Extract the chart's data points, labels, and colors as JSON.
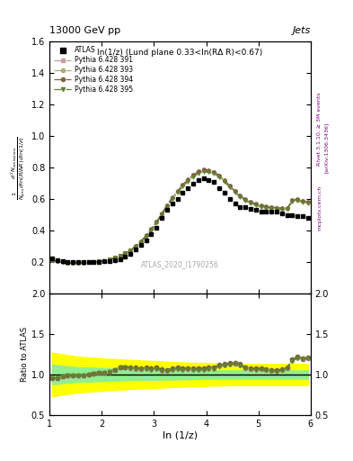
{
  "title_top": "13000 GeV pp",
  "title_right": "Jets",
  "plot_title": "ln(1/z) (Lund plane 0.33<ln(RΔ R)<0.67)",
  "watermark": "ATLAS_2020_I1790256",
  "rivet_label": "Rivet 3.1.10, ≥ 3M events",
  "arxiv_label": "[arXiv:1306.3436]",
  "mcplots_label": "mcplots.cern.ch",
  "xlabel": "ln (1/z)",
  "ylabel_ratio": "Ratio to ATLAS",
  "xlim": [
    1.0,
    6.0
  ],
  "ylim_main": [
    0.0,
    1.6
  ],
  "ylim_ratio": [
    0.5,
    2.0
  ],
  "yticks_main": [
    0.2,
    0.4,
    0.6,
    0.8,
    1.0,
    1.2,
    1.4,
    1.6
  ],
  "yticks_ratio": [
    0.5,
    1.0,
    1.5,
    2.0
  ],
  "x_atlas": [
    1.05,
    1.15,
    1.25,
    1.35,
    1.45,
    1.55,
    1.65,
    1.75,
    1.85,
    1.95,
    2.05,
    2.15,
    2.25,
    2.35,
    2.45,
    2.55,
    2.65,
    2.75,
    2.85,
    2.95,
    3.05,
    3.15,
    3.25,
    3.35,
    3.45,
    3.55,
    3.65,
    3.75,
    3.85,
    3.95,
    4.05,
    4.15,
    4.25,
    4.35,
    4.45,
    4.55,
    4.65,
    4.75,
    4.85,
    4.95,
    5.05,
    5.15,
    5.25,
    5.35,
    5.45,
    5.55,
    5.65,
    5.75,
    5.85,
    5.95
  ],
  "y_atlas": [
    0.225,
    0.215,
    0.205,
    0.2,
    0.2,
    0.2,
    0.2,
    0.2,
    0.2,
    0.2,
    0.205,
    0.21,
    0.215,
    0.22,
    0.235,
    0.255,
    0.28,
    0.31,
    0.34,
    0.38,
    0.42,
    0.48,
    0.53,
    0.57,
    0.6,
    0.64,
    0.67,
    0.7,
    0.72,
    0.73,
    0.72,
    0.71,
    0.67,
    0.64,
    0.6,
    0.57,
    0.55,
    0.55,
    0.54,
    0.53,
    0.52,
    0.52,
    0.52,
    0.52,
    0.51,
    0.5,
    0.5,
    0.49,
    0.49,
    0.48
  ],
  "x_mc": [
    1.05,
    1.15,
    1.25,
    1.35,
    1.45,
    1.55,
    1.65,
    1.75,
    1.85,
    1.95,
    2.05,
    2.15,
    2.25,
    2.35,
    2.45,
    2.55,
    2.65,
    2.75,
    2.85,
    2.95,
    3.05,
    3.15,
    3.25,
    3.35,
    3.45,
    3.55,
    3.65,
    3.75,
    3.85,
    3.95,
    4.05,
    4.15,
    4.25,
    4.35,
    4.45,
    4.55,
    4.65,
    4.75,
    4.85,
    4.95,
    5.05,
    5.15,
    5.25,
    5.35,
    5.45,
    5.55,
    5.65,
    5.75,
    5.85,
    5.95
  ],
  "y_391": [
    0.215,
    0.205,
    0.2,
    0.198,
    0.197,
    0.197,
    0.198,
    0.2,
    0.202,
    0.205,
    0.21,
    0.218,
    0.228,
    0.24,
    0.256,
    0.276,
    0.3,
    0.33,
    0.365,
    0.405,
    0.452,
    0.503,
    0.555,
    0.605,
    0.645,
    0.685,
    0.718,
    0.748,
    0.77,
    0.782,
    0.778,
    0.768,
    0.745,
    0.715,
    0.68,
    0.648,
    0.618,
    0.595,
    0.578,
    0.565,
    0.555,
    0.548,
    0.545,
    0.542,
    0.54,
    0.538,
    0.59,
    0.595,
    0.585,
    0.578
  ],
  "y_393": [
    0.215,
    0.205,
    0.2,
    0.198,
    0.197,
    0.197,
    0.198,
    0.2,
    0.202,
    0.205,
    0.21,
    0.218,
    0.228,
    0.24,
    0.256,
    0.277,
    0.302,
    0.332,
    0.368,
    0.408,
    0.455,
    0.507,
    0.558,
    0.608,
    0.648,
    0.688,
    0.72,
    0.75,
    0.772,
    0.784,
    0.78,
    0.77,
    0.748,
    0.718,
    0.682,
    0.65,
    0.62,
    0.597,
    0.58,
    0.567,
    0.558,
    0.55,
    0.547,
    0.543,
    0.541,
    0.54,
    0.592,
    0.597,
    0.587,
    0.58
  ],
  "y_394": [
    0.215,
    0.205,
    0.2,
    0.198,
    0.197,
    0.197,
    0.198,
    0.2,
    0.202,
    0.205,
    0.21,
    0.218,
    0.228,
    0.24,
    0.256,
    0.278,
    0.304,
    0.334,
    0.37,
    0.41,
    0.458,
    0.51,
    0.562,
    0.612,
    0.652,
    0.692,
    0.724,
    0.754,
    0.776,
    0.788,
    0.784,
    0.774,
    0.752,
    0.722,
    0.686,
    0.654,
    0.624,
    0.6,
    0.583,
    0.57,
    0.56,
    0.553,
    0.55,
    0.546,
    0.544,
    0.542,
    0.594,
    0.599,
    0.589,
    0.582
  ],
  "y_395": [
    0.215,
    0.205,
    0.2,
    0.198,
    0.197,
    0.197,
    0.198,
    0.2,
    0.202,
    0.205,
    0.21,
    0.218,
    0.228,
    0.24,
    0.256,
    0.276,
    0.3,
    0.329,
    0.364,
    0.403,
    0.45,
    0.5,
    0.551,
    0.6,
    0.64,
    0.679,
    0.712,
    0.741,
    0.762,
    0.774,
    0.77,
    0.761,
    0.739,
    0.71,
    0.675,
    0.643,
    0.614,
    0.591,
    0.574,
    0.562,
    0.552,
    0.546,
    0.543,
    0.54,
    0.538,
    0.537,
    0.585,
    0.59,
    0.581,
    0.574
  ],
  "color_391": "#c8a0a0",
  "color_393": "#b0a870",
  "color_394": "#806040",
  "color_395": "#608030",
  "legend_labels": [
    "ATLAS",
    "Pythia 6.428 391",
    "Pythia 6.428 393",
    "Pythia 6.428 394",
    "Pythia 6.428 395"
  ],
  "yellow_band_x": [
    1.05,
    1.55,
    2.55,
    3.55,
    4.05,
    4.55,
    5.05,
    5.55,
    5.95
  ],
  "yellow_lo": [
    0.73,
    0.78,
    0.82,
    0.85,
    0.86,
    0.87,
    0.87,
    0.87,
    0.87
  ],
  "yellow_hi": [
    1.27,
    1.22,
    1.18,
    1.15,
    1.14,
    1.13,
    1.13,
    1.13,
    1.13
  ],
  "green_lo": [
    0.88,
    0.91,
    0.93,
    0.94,
    0.95,
    0.95,
    0.95,
    0.95,
    0.95
  ],
  "green_hi": [
    1.12,
    1.09,
    1.07,
    1.06,
    1.05,
    1.05,
    1.05,
    1.05,
    1.05
  ]
}
